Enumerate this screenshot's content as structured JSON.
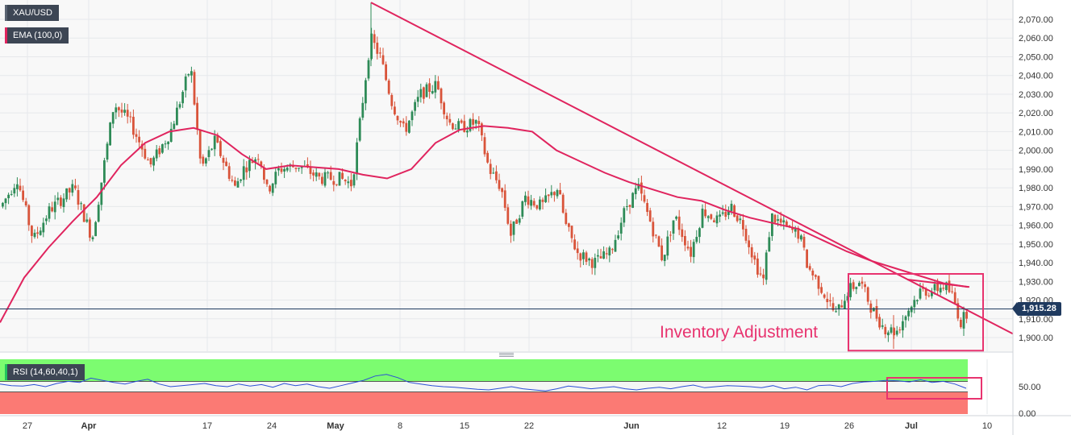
{
  "legend": {
    "price_symbol": "XAU/USD",
    "ema_label": "EMA (100,0)",
    "rsi_label": "RSI (14,60,40,1)"
  },
  "price_badge": "1,915.28",
  "annotation": "Inventory Adjustment",
  "colors": {
    "up_candle": "#2e8b57",
    "down_candle": "#d9543a",
    "ema_line": "#e0245e",
    "trendline": "#e0245e",
    "rsi_line": "#2b4fd6",
    "rsi_upper_zone": "#7cfc70",
    "rsi_lower_zone": "#fb7a74",
    "price_line": "#1f3a5f",
    "annotation": "#e8336f"
  },
  "chart_data": [
    {
      "type": "candlestick",
      "symbol": "XAU/USD",
      "y_axis_ticks": [
        "2,070.00",
        "2,060.00",
        "2,050.00",
        "2,040.00",
        "2,030.00",
        "2,020.00",
        "2,010.00",
        "2,000.00",
        "1,990.00",
        "1,980.00",
        "1,970.00",
        "1,960.00",
        "1,950.00",
        "1,940.00",
        "1,930.00",
        "1,920.00",
        "1,910.00",
        "1,900.00"
      ],
      "y_tick_values": [
        2070,
        2060,
        2050,
        2040,
        2030,
        2020,
        2010,
        2000,
        1990,
        1980,
        1970,
        1960,
        1950,
        1940,
        1930,
        1920,
        1910,
        1900
      ],
      "x_axis_ticks": [
        "27",
        "Apr",
        "17",
        "24",
        "May",
        "8",
        "15",
        "22",
        "Jun",
        "12",
        "19",
        "26",
        "Jul",
        "10"
      ],
      "x_tick_bold": [
        false,
        true,
        false,
        false,
        true,
        false,
        false,
        false,
        true,
        false,
        false,
        false,
        true,
        false
      ],
      "ylim": [
        1893,
        2077
      ],
      "current_price": 1915.28,
      "ema": {
        "name": "EMA (100,0)",
        "values": [
          1908,
          1932,
          1948,
          1962,
          1975,
          1992,
          2004,
          2010,
          2012,
          2008,
          1998,
          1990,
          1992,
          1991,
          1990,
          1987,
          1985,
          1990,
          2004,
          2011,
          2013,
          2012,
          2010,
          2000,
          1994,
          1988,
          1983,
          1979,
          1975,
          1973,
          1968,
          1964,
          1961,
          1958,
          1952,
          1946,
          1941,
          1937,
          1933,
          1929,
          1927
        ]
      },
      "key_points": {
        "swing_high": 2079,
        "swing_low": 1894
      },
      "trendline": {
        "from": 2079,
        "to": 1902
      },
      "annotation_box": {
        "label": "Inventory Adjustment",
        "top": 1934,
        "bottom": 1893
      }
    },
    {
      "type": "line",
      "name": "RSI (14,60,40,1)",
      "y_axis_ticks": [
        "50.00",
        "0.00"
      ],
      "y_tick_values": [
        50,
        0
      ],
      "levels": {
        "overbought": 60,
        "oversold": 40
      },
      "ylim": [
        0,
        100
      ],
      "values": [
        55,
        52,
        51,
        54,
        50,
        56,
        60,
        58,
        66,
        62,
        58,
        55,
        60,
        64,
        55,
        50,
        52,
        54,
        56,
        52,
        50,
        55,
        51,
        54,
        49,
        56,
        52,
        55,
        50,
        47,
        52,
        57,
        62,
        70,
        73,
        67,
        58,
        55,
        52,
        50,
        49,
        47,
        45,
        44,
        47,
        50,
        46,
        44,
        42,
        46,
        51,
        49,
        46,
        48,
        50,
        46,
        44,
        47,
        49,
        46,
        50,
        53,
        48,
        50,
        52,
        51,
        50,
        48,
        52,
        46,
        49,
        44,
        52,
        53,
        50,
        56,
        59,
        60,
        62,
        61,
        59,
        63,
        58,
        60,
        55,
        47
      ]
    }
  ]
}
